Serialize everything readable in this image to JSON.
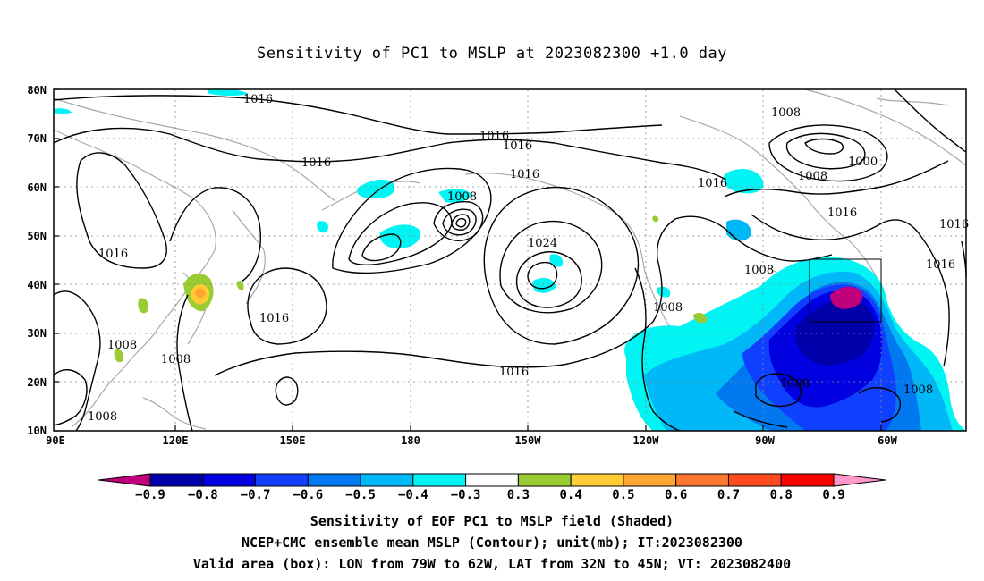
{
  "title": "Sensitivity of PC1 to MSLP at 2023082300 +1.0 day",
  "lat_labels": [
    "80N",
    "70N",
    "60N",
    "50N",
    "40N",
    "30N",
    "20N",
    "10N"
  ],
  "lon_labels": [
    "90E",
    "120E",
    "150E",
    "180",
    "150W",
    "120W",
    "90W",
    "60W"
  ],
  "contour_labels": [
    "1016",
    "1016",
    "1016",
    "1016",
    "1016",
    "1008",
    "1016",
    "1024",
    "1016",
    "1008",
    "1000",
    "1008",
    "1016",
    "1016",
    "1016",
    "1016",
    "1008",
    "1008",
    "1008",
    "1016",
    "1008",
    "1008",
    "1008",
    "1008"
  ],
  "colorbar": {
    "labels": [
      "-0.9",
      "-0.8",
      "-0.7",
      "-0.6",
      "-0.5",
      "-0.4",
      "-0.3",
      "0.3",
      "0.4",
      "0.5",
      "0.6",
      "0.7",
      "0.8",
      "0.9"
    ],
    "colors": [
      "#c0007a",
      "#0000aa",
      "#0000e0",
      "#1040ff",
      "#0078f0",
      "#00b8f8",
      "#00f4f4",
      "#ffffff",
      "#99cc33",
      "#ffcc33",
      "#ffa530",
      "#ff7830",
      "#ff4a20",
      "#ff0000",
      "#ff99cc"
    ]
  },
  "captions": {
    "line1": "Sensitivity of EOF PC1 to MSLP field (Shaded)",
    "line2": "NCEP+CMC ensemble mean MSLP (Contour); unit(mb); IT:2023082300",
    "line3": "Valid area (box): LON from 79W to 62W, LAT from 32N to 45N; VT: 2023082400"
  }
}
